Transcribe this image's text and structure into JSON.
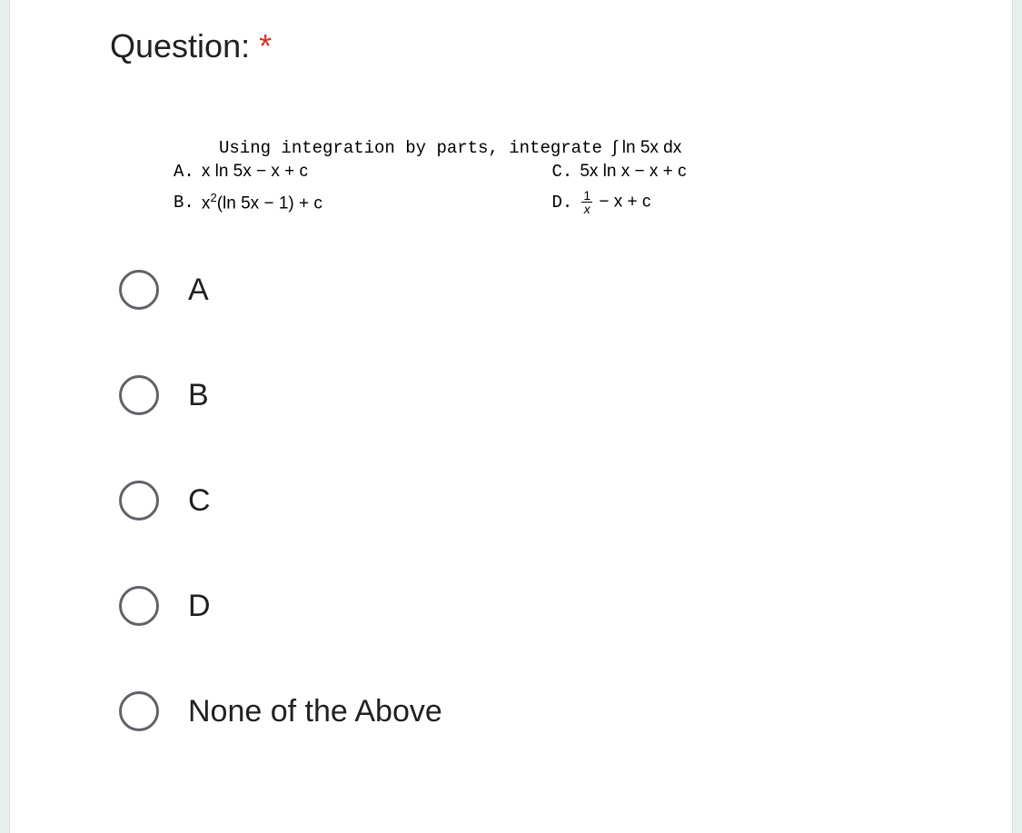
{
  "header": {
    "title": "Question:",
    "required_marker": "*"
  },
  "question": {
    "prompt_prefix": "Using integration by parts, integrate",
    "prompt_integral": "∫ ln 5x dx",
    "answers": {
      "A": {
        "label": "A.",
        "expr": "x ln 5x − x + c"
      },
      "B": {
        "label": "B.",
        "expr_prefix": "x",
        "expr_sup": "2",
        "expr_suffix": "(ln 5x − 1) + c"
      },
      "C": {
        "label": "C.",
        "expr": "5x ln x − x + c"
      },
      "D": {
        "label": "D.",
        "frac_num": "1",
        "frac_den": "x",
        "expr_suffix": "− x + c"
      }
    }
  },
  "options": [
    {
      "label": "A"
    },
    {
      "label": "B"
    },
    {
      "label": "C"
    },
    {
      "label": "D"
    },
    {
      "label": "None of the Above"
    }
  ],
  "colors": {
    "background": "#e8f0ee",
    "card_background": "#ffffff",
    "text": "#202124",
    "required": "#d93025",
    "radio_border": "#5f6368"
  }
}
